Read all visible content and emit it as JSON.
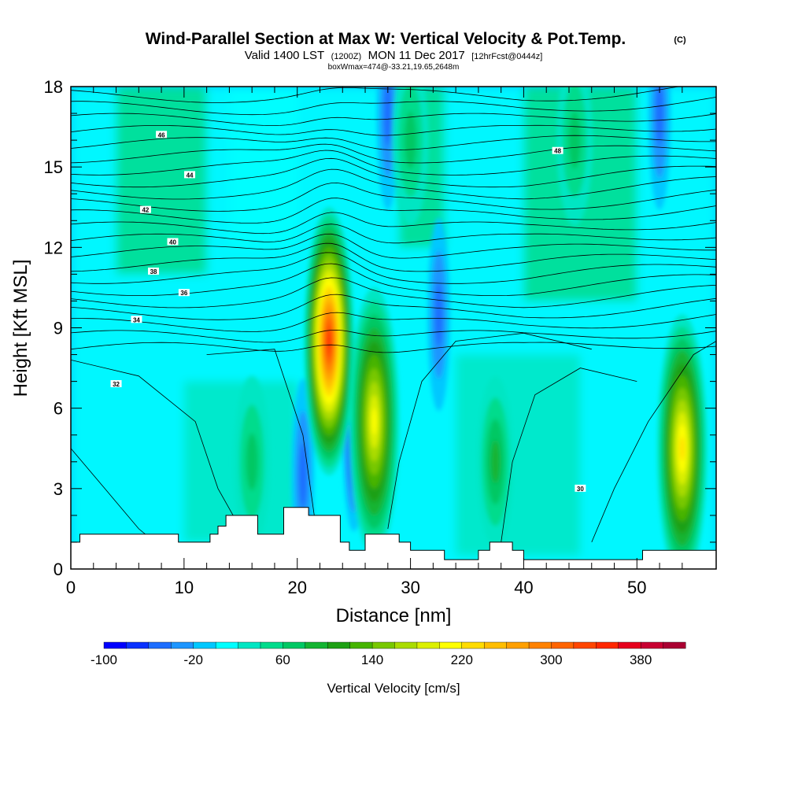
{
  "title": {
    "main": "Wind-Parallel Section at Max W: Vertical Velocity & Pot.Temp.",
    "copyright": "(C)",
    "valid_prefix": "Valid 1400 LST",
    "valid_utc": "(1200Z)",
    "valid_date": "MON 11 Dec 2017",
    "forecast": "[12hrFcst@0444z]",
    "note": "boxWmax=474@-33.21,19.65,2648m"
  },
  "chart_data": {
    "type": "heatmap",
    "xlabel": "Distance [nm]",
    "ylabel": "Height [Kft MSL]",
    "xlim": [
      0,
      57
    ],
    "ylim": [
      0,
      18
    ],
    "x_ticks": [
      "0",
      "10",
      "20",
      "30",
      "40",
      "50"
    ],
    "y_ticks": [
      "0",
      "3",
      "6",
      "9",
      "12",
      "15",
      "18"
    ],
    "colorbar": {
      "title": "Vertical Velocity [cm/s]",
      "min": -100,
      "max": 420,
      "step": 20,
      "tick_labels": [
        "-100",
        "-20",
        "60",
        "140",
        "220",
        "300",
        "380"
      ],
      "colors": [
        "#0000ff",
        "#0a32ff",
        "#1e6eff",
        "#1e96ff",
        "#00c8ff",
        "#00ffff",
        "#00e6c3",
        "#00dc8c",
        "#00c864",
        "#14b432",
        "#1ea014",
        "#46b400",
        "#78c800",
        "#aadc00",
        "#dcf000",
        "#ffff00",
        "#ffdc00",
        "#ffbe00",
        "#ffa000",
        "#ff8200",
        "#ff6400",
        "#ff4600",
        "#ff2800",
        "#e6001e",
        "#c80032",
        "#aa0032"
      ]
    },
    "theta_contours": {
      "labels": [
        "32",
        "30",
        "34",
        "36",
        "38",
        "40",
        "42",
        "44",
        "46",
        "48"
      ]
    },
    "updrafts": [
      {
        "x": 22.8,
        "z": 8.5,
        "w": 340
      },
      {
        "x": 26.8,
        "z": 5.5,
        "w": 200
      },
      {
        "x": 54.0,
        "z": 4.5,
        "w": 220
      },
      {
        "x": 37.5,
        "z": 4.0,
        "w": 80
      },
      {
        "x": 16.0,
        "z": 4.0,
        "w": 60
      },
      {
        "x": 44.5,
        "z": 16.0,
        "w": 60
      },
      {
        "x": 30.0,
        "z": 16.0,
        "w": 50
      }
    ],
    "downdrafts": [
      {
        "x": 20.5,
        "z": 3.5,
        "w": -60
      },
      {
        "x": 25.0,
        "z": 5.0,
        "w": -100
      },
      {
        "x": 32.5,
        "z": 9.5,
        "w": -60
      },
      {
        "x": 28.0,
        "z": 17.0,
        "w": -60
      },
      {
        "x": 52.0,
        "z": 17.0,
        "w": -60
      }
    ],
    "terrain": [
      {
        "x": 0,
        "z": 1.0
      },
      {
        "x": 0.8,
        "z": 1.3
      },
      {
        "x": 9.5,
        "z": 1.0
      },
      {
        "x": 12.3,
        "z": 1.3
      },
      {
        "x": 13.0,
        "z": 1.6
      },
      {
        "x": 13.7,
        "z": 2.0
      },
      {
        "x": 16.5,
        "z": 1.3
      },
      {
        "x": 18.8,
        "z": 2.3
      },
      {
        "x": 21.0,
        "z": 2.0
      },
      {
        "x": 23.8,
        "z": 1.0
      },
      {
        "x": 24.6,
        "z": 0.7
      },
      {
        "x": 26.0,
        "z": 1.3
      },
      {
        "x": 29.0,
        "z": 1.0
      },
      {
        "x": 30.0,
        "z": 0.7
      },
      {
        "x": 33.0,
        "z": 0.35
      },
      {
        "x": 36.0,
        "z": 0.7
      },
      {
        "x": 37.0,
        "z": 1.0
      },
      {
        "x": 39.0,
        "z": 0.7
      },
      {
        "x": 40.0,
        "z": 0.35
      },
      {
        "x": 50.5,
        "z": 0.7
      },
      {
        "x": 57,
        "z": 0.7
      }
    ]
  }
}
